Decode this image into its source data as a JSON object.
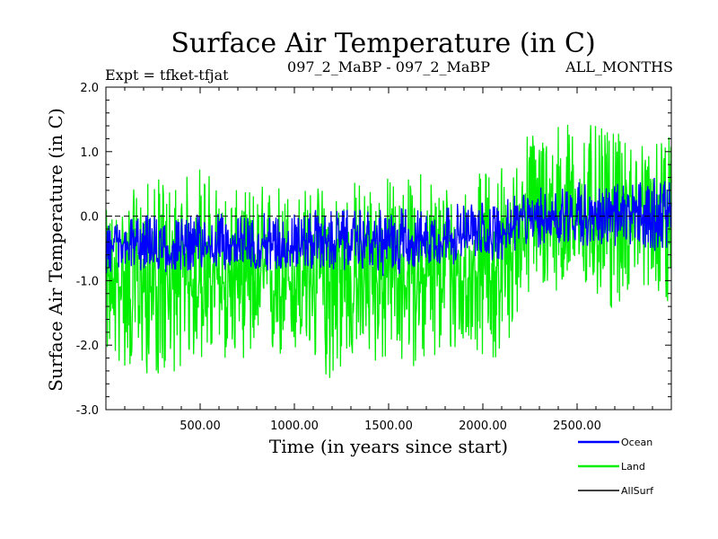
{
  "chart_data": {
    "type": "line",
    "title": "Surface Air Temperature (in C)",
    "subtitle_left": "Expt = tfket-tfjat",
    "subtitle_center": "097_2_MaBP - 097_2_MaBP",
    "subtitle_right": "ALL_MONTHS",
    "xlabel": "Time (in years since start)",
    "ylabel": "Surface Air Temperature (in C)",
    "xlim": [
      0,
      3000
    ],
    "ylim": [
      -3.0,
      2.0
    ],
    "x_ticks": [
      500,
      1000,
      1500,
      2000,
      2500
    ],
    "x_tick_labels": [
      "500.00",
      "1000.00",
      "1500.00",
      "2000.00",
      "2500.00"
    ],
    "y_ticks": [
      -3.0,
      -2.0,
      -1.0,
      0.0,
      1.0,
      2.0
    ],
    "y_tick_labels": [
      "-3.0",
      "-2.0",
      "-1.0",
      "0.0",
      "1.0",
      "2.0"
    ],
    "zero_line": "dashed",
    "legend_position": "bottom-right",
    "series": [
      {
        "name": "Land",
        "color": "#00ee00",
        "x": [
          0,
          100,
          200,
          300,
          400,
          500,
          600,
          700,
          800,
          900,
          1000,
          1100,
          1200,
          1300,
          1400,
          1500,
          1600,
          1700,
          1800,
          1900,
          2000,
          2100,
          2150,
          2200,
          2300,
          2400,
          2500,
          2600,
          2700,
          2800,
          2900,
          3000
        ],
        "mean": [
          -1.05,
          -1.1,
          -1.1,
          -1.1,
          -1.05,
          -1.05,
          -1.05,
          -1.0,
          -1.05,
          -1.05,
          -1.0,
          -1.0,
          -1.0,
          -1.0,
          -1.0,
          -0.95,
          -0.95,
          -0.95,
          -0.9,
          -0.95,
          -0.85,
          -0.75,
          -0.6,
          -0.05,
          -0.05,
          0.0,
          0.0,
          0.0,
          0.05,
          0.1,
          0.1,
          0.15
        ],
        "min": [
          -2.2,
          -2.4,
          -2.45,
          -2.55,
          -2.35,
          -2.25,
          -2.25,
          -2.2,
          -2.25,
          -2.3,
          -2.2,
          -2.35,
          -2.6,
          -2.25,
          -2.3,
          -2.35,
          -2.3,
          -2.4,
          -2.25,
          -2.1,
          -2.15,
          -2.35,
          -1.9,
          -1.3,
          -1.25,
          -1.15,
          -1.2,
          -1.3,
          -1.55,
          -1.05,
          -1.15,
          -1.4
        ],
        "max": [
          0.1,
          0.3,
          0.55,
          0.6,
          0.55,
          0.9,
          0.5,
          0.4,
          0.5,
          0.6,
          0.45,
          0.5,
          0.55,
          0.6,
          0.6,
          0.65,
          0.6,
          0.8,
          0.6,
          0.6,
          0.7,
          0.9,
          0.5,
          1.3,
          1.4,
          1.5,
          1.5,
          1.4,
          1.3,
          1.2,
          1.1,
          1.25
        ]
      },
      {
        "name": "Ocean",
        "color": "#0000ff",
        "x": [
          0,
          100,
          200,
          300,
          400,
          500,
          600,
          700,
          800,
          900,
          1000,
          1100,
          1200,
          1300,
          1400,
          1500,
          1600,
          1700,
          1800,
          1900,
          2000,
          2100,
          2150,
          2200,
          2300,
          2400,
          2500,
          2600,
          2700,
          2800,
          2900,
          3000
        ],
        "mean": [
          -0.55,
          -0.45,
          -0.5,
          -0.5,
          -0.5,
          -0.45,
          -0.45,
          -0.45,
          -0.45,
          -0.45,
          -0.45,
          -0.4,
          -0.4,
          -0.4,
          -0.4,
          -0.4,
          -0.35,
          -0.35,
          -0.35,
          -0.35,
          -0.3,
          -0.3,
          -0.2,
          -0.05,
          -0.05,
          0.0,
          0.0,
          0.0,
          0.0,
          0.05,
          0.05,
          0.05
        ],
        "min": [
          -0.9,
          -0.85,
          -0.85,
          -0.9,
          -0.85,
          -0.85,
          -0.85,
          -0.8,
          -0.85,
          -0.85,
          -0.8,
          -0.85,
          -0.85,
          -0.85,
          -0.8,
          -1.05,
          -0.8,
          -0.8,
          -0.75,
          -0.75,
          -0.7,
          -0.7,
          -0.6,
          -0.5,
          -0.5,
          -0.45,
          -0.45,
          -0.5,
          -0.5,
          -0.55,
          -0.55,
          -0.5
        ],
        "max": [
          -0.15,
          0.0,
          0.05,
          0.0,
          0.0,
          0.05,
          0.05,
          0.0,
          0.05,
          0.05,
          0.05,
          0.1,
          0.1,
          0.1,
          0.1,
          0.1,
          0.15,
          0.1,
          0.2,
          0.2,
          0.25,
          0.2,
          0.3,
          0.35,
          0.45,
          0.5,
          0.6,
          0.45,
          0.5,
          0.55,
          0.6,
          0.55
        ]
      },
      {
        "name": "AllSurf",
        "color": "#000000",
        "x": [],
        "mean": [],
        "min": [],
        "max": []
      }
    ],
    "legend": [
      {
        "label": "Ocean",
        "color": "#0000ff"
      },
      {
        "label": "Land",
        "color": "#00ee00"
      },
      {
        "label": "AllSurf",
        "color": "#000000"
      }
    ]
  }
}
